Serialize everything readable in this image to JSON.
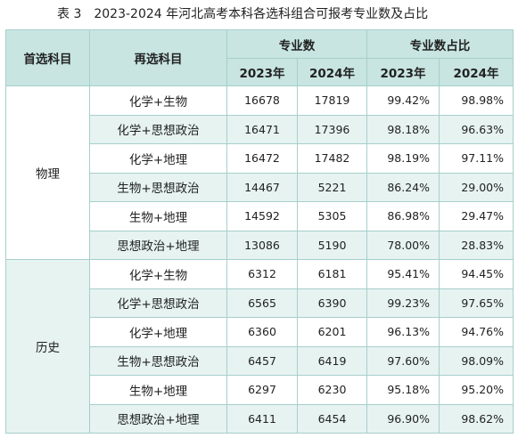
{
  "caption": {
    "label": "表 3",
    "title": "2023-2024 年河北高考本科各选科组合可报考专业数及占比"
  },
  "header": {
    "first_subject": "首选科目",
    "second_subject": "再选科目",
    "major_count": "专业数",
    "major_share": "专业数占比",
    "year_2023": "2023年",
    "year_2024": "2024年"
  },
  "sections": [
    {
      "subject": "物理",
      "rows": [
        {
          "combo": "化学+生物",
          "c2023": "16678",
          "c2024": "17819",
          "p2023": "99.42%",
          "p2024": "98.98%"
        },
        {
          "combo": "化学+思想政治",
          "c2023": "16471",
          "c2024": "17396",
          "p2023": "98.18%",
          "p2024": "96.63%"
        },
        {
          "combo": "化学+地理",
          "c2023": "16472",
          "c2024": "17482",
          "p2023": "98.19%",
          "p2024": "97.11%"
        },
        {
          "combo": "生物+思想政治",
          "c2023": "14467",
          "c2024": "5221",
          "p2023": "86.24%",
          "p2024": "29.00%"
        },
        {
          "combo": "生物+地理",
          "c2023": "14592",
          "c2024": "5305",
          "p2023": "86.98%",
          "p2024": "29.47%"
        },
        {
          "combo": "思想政治+地理",
          "c2023": "13086",
          "c2024": "5190",
          "p2023": "78.00%",
          "p2024": "28.83%"
        }
      ]
    },
    {
      "subject": "历史",
      "rows": [
        {
          "combo": "化学+生物",
          "c2023": "6312",
          "c2024": "6181",
          "p2023": "95.41%",
          "p2024": "94.45%"
        },
        {
          "combo": "化学+思想政治",
          "c2023": "6565",
          "c2024": "6390",
          "p2023": "99.23%",
          "p2024": "97.65%"
        },
        {
          "combo": "化学+地理",
          "c2023": "6360",
          "c2024": "6201",
          "p2023": "96.13%",
          "p2024": "94.76%"
        },
        {
          "combo": "生物+思想政治",
          "c2023": "6457",
          "c2024": "6419",
          "p2023": "97.60%",
          "p2024": "98.09%"
        },
        {
          "combo": "生物+地理",
          "c2023": "6297",
          "c2024": "6230",
          "p2023": "95.18%",
          "p2024": "95.20%"
        },
        {
          "combo": "思想政治+地理",
          "c2023": "6411",
          "c2024": "6454",
          "p2023": "96.90%",
          "p2024": "98.62%"
        }
      ]
    }
  ],
  "colors": {
    "header_bg": "#c8e5e2",
    "alt_row_bg": "#e6f3f1",
    "border": "#a7cfcb"
  }
}
